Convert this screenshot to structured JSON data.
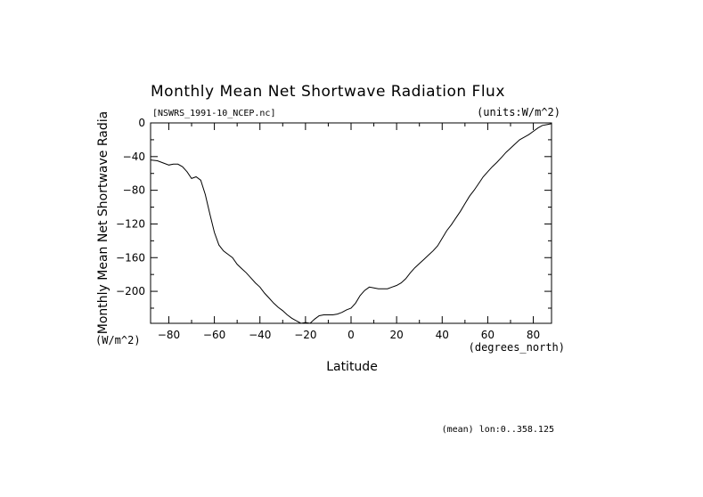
{
  "chart_data": {
    "type": "line",
    "title": "Monthly Mean Net Shortwave Radiation Flux",
    "file_label": "[NSWRS_1991-10_NCEP.nc]",
    "units_label": "(units:W/m^2)",
    "xlabel": "Latitude",
    "x_units": "(degrees_north)",
    "ylabel": "Monthly Mean Net Shortwave Radia",
    "y_units": "(W/m^2)",
    "footnote": "(mean) lon:0..358.125",
    "xlim": [
      -88,
      88
    ],
    "ylim": [
      -238,
      0
    ],
    "x_ticks": [
      -80,
      -60,
      -40,
      -20,
      0,
      20,
      40,
      60,
      80
    ],
    "y_ticks": [
      0,
      -40,
      -80,
      -120,
      -160,
      -200
    ],
    "x": [
      -88,
      -85,
      -82,
      -80,
      -78,
      -76,
      -74,
      -72,
      -70,
      -68,
      -66,
      -64,
      -62,
      -60,
      -58,
      -56,
      -54,
      -52,
      -50,
      -48,
      -46,
      -44,
      -42,
      -40,
      -38,
      -36,
      -34,
      -32,
      -30,
      -28,
      -26,
      -24,
      -22,
      -20,
      -18,
      -16,
      -14,
      -12,
      -10,
      -8,
      -6,
      -4,
      -2,
      0,
      2,
      4,
      6,
      8,
      10,
      12,
      14,
      16,
      18,
      20,
      22,
      24,
      26,
      28,
      30,
      32,
      34,
      36,
      38,
      40,
      42,
      44,
      46,
      48,
      50,
      52,
      54,
      56,
      58,
      60,
      62,
      64,
      66,
      68,
      70,
      72,
      74,
      76,
      78,
      80,
      82,
      84,
      86,
      88
    ],
    "series": [
      {
        "values": [
          -44,
          -45,
          -48,
          -50,
          -49,
          -49,
          -52,
          -58,
          -66,
          -64,
          -68,
          -85,
          -108,
          -130,
          -145,
          -152,
          -156,
          -160,
          -168,
          -173,
          -178,
          -184,
          -190,
          -195,
          -202,
          -208,
          -214,
          -219,
          -223,
          -228,
          -232,
          -235,
          -238,
          -237,
          -238,
          -233,
          -229,
          -228,
          -228,
          -228,
          -227,
          -225,
          -222,
          -220,
          -214,
          -205,
          -199,
          -195,
          -196,
          -197,
          -197,
          -197,
          -195,
          -193,
          -190,
          -185,
          -178,
          -172,
          -167,
          -162,
          -157,
          -152,
          -146,
          -137,
          -128,
          -121,
          -113,
          -105,
          -96,
          -87,
          -80,
          -72,
          -64,
          -58,
          -52,
          -47,
          -41,
          -35,
          -30,
          -25,
          -20,
          -17,
          -14,
          -10,
          -6,
          -3,
          -2,
          -1
        ]
      }
    ]
  }
}
